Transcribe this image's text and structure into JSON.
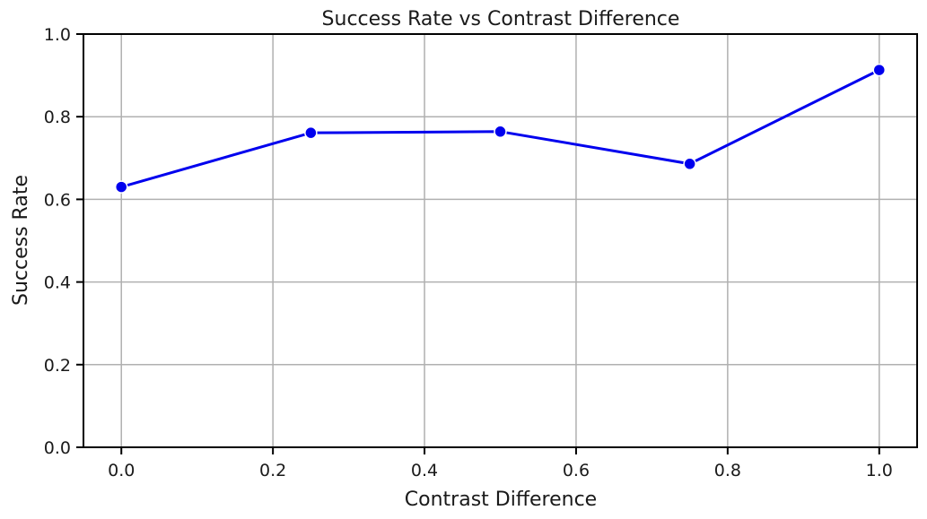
{
  "chart_data": {
    "type": "line",
    "title": "Success Rate vs Contrast Difference",
    "xlabel": "Contrast Difference",
    "ylabel": "Success Rate",
    "x": [
      0.0,
      0.25,
      0.5,
      0.75,
      1.0
    ],
    "series": [
      {
        "values": [
          0.63,
          0.761,
          0.764,
          0.686,
          0.913
        ]
      }
    ],
    "xlim": [
      -0.05,
      1.05
    ],
    "ylim": [
      0.0,
      1.0
    ],
    "xticks": [
      0.0,
      0.2,
      0.4,
      0.6,
      0.8,
      1.0
    ],
    "xtick_labels": [
      "0.0",
      "0.2",
      "0.4",
      "0.6",
      "0.8",
      "1.0"
    ],
    "yticks": [
      0.0,
      0.2,
      0.4,
      0.6,
      0.8,
      1.0
    ],
    "ytick_labels": [
      "0.0",
      "0.2",
      "0.4",
      "0.6",
      "0.8",
      "1.0"
    ],
    "grid": true,
    "marker": "circle",
    "colors": {
      "line": "#0000ee",
      "marker": "#0000ee",
      "grid": "#b0b0b0"
    }
  }
}
